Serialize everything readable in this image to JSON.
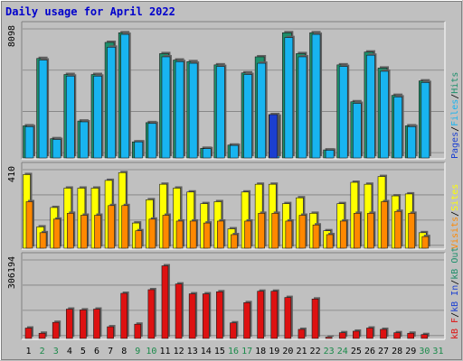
{
  "chart_data": {
    "type": "bar",
    "title": "Daily usage for April 2022",
    "categories": [
      "1",
      "2",
      "3",
      "4",
      "5",
      "6",
      "7",
      "8",
      "9",
      "10",
      "11",
      "12",
      "13",
      "14",
      "15",
      "16",
      "17",
      "18",
      "19",
      "20",
      "21",
      "22",
      "23",
      "24",
      "25",
      "26",
      "27",
      "28",
      "29",
      "30",
      "31"
    ],
    "weekend_days": [
      "2",
      "3",
      "9",
      "10",
      "16",
      "17",
      "23",
      "24",
      "30",
      "31"
    ],
    "panels": [
      {
        "id": "hits",
        "max_label": "8098",
        "ymax": 8098,
        "legend": [
          "Pages",
          "/",
          "Files",
          "/",
          "Hits"
        ],
        "series": [
          {
            "name": "Hits",
            "values": [
              2000,
              6200,
              1200,
              5200,
              2300,
              5200,
              7200,
              7800,
              1000,
              2200,
              6500,
              6100,
              6000,
              600,
              5800,
              800,
              5300,
              6300,
              2700,
              7800,
              6500,
              7800,
              500,
              5800,
              3500,
              6600,
              5600,
              3900,
              2000,
              4800,
              0
            ]
          },
          {
            "name": "Files",
            "values": [
              1950,
              6100,
              1150,
              5100,
              2250,
              5100,
              6900,
              7700,
              1000,
              2150,
              6300,
              6000,
              5900,
              580,
              5700,
              780,
              5200,
              5900,
              2600,
              7500,
              6300,
              7700,
              480,
              5700,
              3400,
              6400,
              5400,
              3800,
              1950,
              4700,
              0
            ]
          },
          {
            "name": "Pages",
            "values": [
              0,
              0,
              0,
              0,
              0,
              0,
              0,
              0,
              0,
              0,
              0,
              0,
              0,
              0,
              0,
              0,
              0,
              0,
              2700,
              0,
              0,
              0,
              0,
              0,
              0,
              0,
              0,
              0,
              0,
              0,
              0
            ]
          }
        ]
      },
      {
        "id": "visits",
        "max_label": "410",
        "ymax": 410,
        "legend": [
          "Visits",
          "/",
          "Sites"
        ],
        "series": [
          {
            "name": "Visits",
            "values": [
              380,
              110,
              210,
              310,
              310,
              310,
              350,
              390,
              130,
              250,
              330,
              310,
              290,
              230,
              240,
              100,
              290,
              330,
              330,
              230,
              260,
              180,
              90,
              230,
              340,
              330,
              370,
              270,
              280,
              80,
              0
            ]
          },
          {
            "name": "Sites",
            "values": [
              240,
              80,
              150,
              180,
              170,
              170,
              220,
              220,
              90,
              150,
              170,
              140,
              140,
              130,
              140,
              70,
              140,
              180,
              180,
              140,
              170,
              120,
              70,
              140,
              180,
              180,
              240,
              190,
              180,
              60,
              0
            ]
          }
        ]
      },
      {
        "id": "kbytes",
        "max_label": "306194",
        "ymax": 306194,
        "legend": [
          "kB F",
          "/",
          "kB In",
          "/",
          "kB Out"
        ],
        "series": [
          {
            "name": "kB F",
            "values": [
              40000,
              20000,
              62000,
              113000,
              110000,
              113000,
              45000,
              174000,
              55000,
              188000,
              280000,
              210000,
              172000,
              172000,
              180000,
              60000,
              138000,
              182000,
              182000,
              158000,
              35000,
              152000,
              5000,
              22000,
              28000,
              40000,
              35000,
              22000,
              20000,
              15000,
              0
            ]
          }
        ]
      }
    ],
    "colors": {
      "hits": "#1d8f6b",
      "files": "#18b4f0",
      "pages": "#1b3fd1",
      "visits": "#ffff00",
      "sites": "#ff8800",
      "kbytes": "#dd1111",
      "title": "#0000cc",
      "weekday_label": "#000000",
      "weekend_label": "#1a8a4a"
    },
    "grid": true
  }
}
